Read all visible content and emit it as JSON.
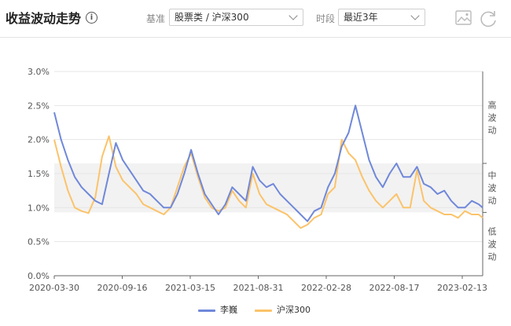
{
  "header": {
    "title": "收益波动走势",
    "info_icon": "info-icon",
    "benchmark_label": "基准",
    "benchmark_value": "股票类 / 沪深300",
    "period_label": "时段",
    "period_value": "最近3年",
    "tools": [
      "image-export-icon",
      "refresh-icon"
    ]
  },
  "colors": {
    "series_a": "#7088d9",
    "series_b": "#fbc36a",
    "band": "#f2f2f2",
    "grid": "#e6e6e6",
    "axis": "#666666"
  },
  "chart_data": {
    "type": "line",
    "title": "",
    "xlabel": "",
    "ylabel": "",
    "ylim": [
      0,
      3.0
    ],
    "y_ticks": [
      "0.0%",
      "0.5%",
      "1.0%",
      "1.5%",
      "2.0%",
      "2.5%",
      "3.0%"
    ],
    "x_ticks": [
      "2020-03-30",
      "2020-09-16",
      "2021-03-15",
      "2021-08-31",
      "2022-02-28",
      "2022-08-17",
      "2023-02-13"
    ],
    "x_range": [
      0,
      3.13
    ],
    "grid": true,
    "legend": "bottom",
    "bands": [
      {
        "label": "高波动",
        "from": 1.65,
        "to": 3.0
      },
      {
        "label": "中波动",
        "from": 0.93,
        "to": 1.65
      },
      {
        "label": "低波动",
        "from": 0,
        "to": 0.93
      }
    ],
    "series": [
      {
        "name": "李巍",
        "x": [
          0,
          0.05,
          0.1,
          0.15,
          0.2,
          0.25,
          0.3,
          0.35,
          0.4,
          0.45,
          0.5,
          0.55,
          0.6,
          0.65,
          0.7,
          0.75,
          0.8,
          0.85,
          0.9,
          0.95,
          1.0,
          1.05,
          1.1,
          1.15,
          1.2,
          1.25,
          1.3,
          1.35,
          1.4,
          1.45,
          1.5,
          1.55,
          1.6,
          1.65,
          1.7,
          1.75,
          1.8,
          1.85,
          1.9,
          1.95,
          2.0,
          2.05,
          2.1,
          2.15,
          2.2,
          2.25,
          2.3,
          2.35,
          2.4,
          2.45,
          2.5,
          2.55,
          2.6,
          2.65,
          2.7,
          2.75,
          2.8,
          2.85,
          2.9,
          2.95,
          3.0,
          3.05,
          3.1,
          3.13
        ],
        "values": [
          2.4,
          2.0,
          1.7,
          1.45,
          1.3,
          1.2,
          1.1,
          1.05,
          1.5,
          1.95,
          1.7,
          1.55,
          1.4,
          1.25,
          1.2,
          1.1,
          1.0,
          1.0,
          1.2,
          1.5,
          1.85,
          1.5,
          1.2,
          1.05,
          0.9,
          1.05,
          1.3,
          1.2,
          1.1,
          1.6,
          1.4,
          1.3,
          1.35,
          1.2,
          1.1,
          1.0,
          0.9,
          0.8,
          0.95,
          1.0,
          1.3,
          1.5,
          1.9,
          2.1,
          2.5,
          2.1,
          1.7,
          1.45,
          1.3,
          1.5,
          1.65,
          1.45,
          1.45,
          1.6,
          1.35,
          1.3,
          1.2,
          1.25,
          1.1,
          1.0,
          1.0,
          1.1,
          1.05,
          1.0
        ]
      },
      {
        "name": "沪深300",
        "x": [
          0,
          0.05,
          0.1,
          0.15,
          0.2,
          0.25,
          0.3,
          0.35,
          0.4,
          0.45,
          0.5,
          0.55,
          0.6,
          0.65,
          0.7,
          0.75,
          0.8,
          0.85,
          0.9,
          0.95,
          1.0,
          1.05,
          1.1,
          1.15,
          1.2,
          1.25,
          1.3,
          1.35,
          1.4,
          1.45,
          1.5,
          1.55,
          1.6,
          1.65,
          1.7,
          1.75,
          1.8,
          1.85,
          1.9,
          1.95,
          2.0,
          2.05,
          2.1,
          2.15,
          2.2,
          2.25,
          2.3,
          2.35,
          2.4,
          2.45,
          2.5,
          2.55,
          2.6,
          2.65,
          2.7,
          2.75,
          2.8,
          2.85,
          2.9,
          2.95,
          3.0,
          3.05,
          3.1,
          3.13
        ],
        "values": [
          2.0,
          1.6,
          1.25,
          1.0,
          0.95,
          0.92,
          1.15,
          1.75,
          2.05,
          1.6,
          1.4,
          1.3,
          1.2,
          1.05,
          1.0,
          0.95,
          0.9,
          1.0,
          1.3,
          1.6,
          1.8,
          1.45,
          1.15,
          1.0,
          0.95,
          1.0,
          1.25,
          1.1,
          1.0,
          1.5,
          1.2,
          1.05,
          1.0,
          0.95,
          0.9,
          0.8,
          0.7,
          0.75,
          0.85,
          0.9,
          1.2,
          1.3,
          2.0,
          1.8,
          1.7,
          1.45,
          1.25,
          1.1,
          1.0,
          1.1,
          1.2,
          1.0,
          1.0,
          1.55,
          1.1,
          1.0,
          0.95,
          0.9,
          0.9,
          0.85,
          0.95,
          0.9,
          0.9,
          0.85
        ]
      }
    ]
  }
}
